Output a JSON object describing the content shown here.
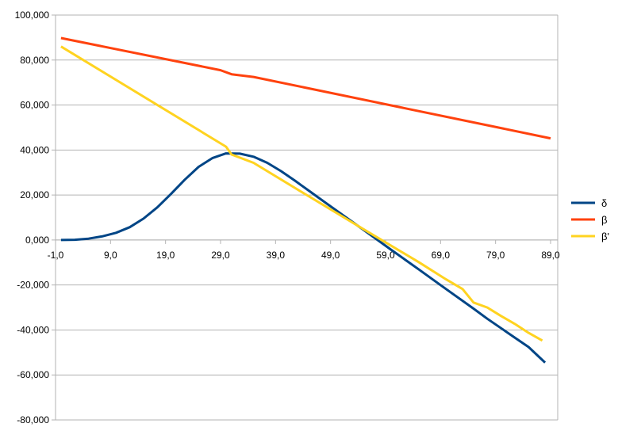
{
  "chart_data": {
    "type": "line",
    "xlim": [
      -1,
      89
    ],
    "ylim": [
      -80000,
      100000
    ],
    "x_ticks": [
      -1,
      9,
      19,
      29,
      39,
      49,
      59,
      69,
      79,
      89
    ],
    "x_tick_labels": [
      "-1,0",
      "9,0",
      "19,0",
      "29,0",
      "39,0",
      "49,0",
      "59,0",
      "69,0",
      "79,0",
      "89,0"
    ],
    "y_ticks": [
      100000,
      80000,
      60000,
      40000,
      20000,
      0,
      -20000,
      -40000,
      -60000,
      -80000
    ],
    "y_tick_labels": [
      "100,000",
      "80,000",
      "60,000",
      "40,000",
      "20,000",
      "0,000",
      "-20,000",
      "-40,000",
      "-60,000",
      "-80,000"
    ],
    "grid": "horizontal",
    "legend_position": "right",
    "series": [
      {
        "name": "δ",
        "color": "#004586",
        "x": [
          0,
          2.5,
          5,
          7.5,
          10,
          12.5,
          15,
          17.5,
          20,
          22.5,
          25,
          27.5,
          30,
          32.5,
          35,
          37.5,
          40,
          42.5,
          45,
          50,
          55,
          60,
          65,
          70,
          75,
          77.5,
          80,
          82.5,
          85,
          88
        ],
        "y": [
          0,
          100,
          600,
          1600,
          3200,
          5700,
          9500,
          14500,
          20500,
          26800,
          32500,
          36400,
          38500,
          38400,
          37000,
          34300,
          30600,
          26400,
          22000,
          13200,
          4500,
          -4300,
          -13000,
          -21800,
          -30500,
          -35000,
          -39200,
          -43400,
          -47600,
          -54500
        ]
      },
      {
        "name": "β",
        "color": "#ff420e",
        "x": [
          0,
          29,
          31,
          35,
          89
        ],
        "y": [
          89800,
          75500,
          73700,
          72500,
          45200
        ]
      },
      {
        "name": "β'",
        "color": "#ffd320",
        "x": [
          0,
          30,
          31,
          35,
          45,
          55,
          65,
          70,
          73,
          75,
          77.5,
          80,
          82.5,
          85,
          87.5
        ],
        "y": [
          86000,
          41500,
          38000,
          34300,
          19500,
          4800,
          -9800,
          -17500,
          -21800,
          -27800,
          -30000,
          -33800,
          -37300,
          -41300,
          -44700
        ]
      }
    ]
  }
}
